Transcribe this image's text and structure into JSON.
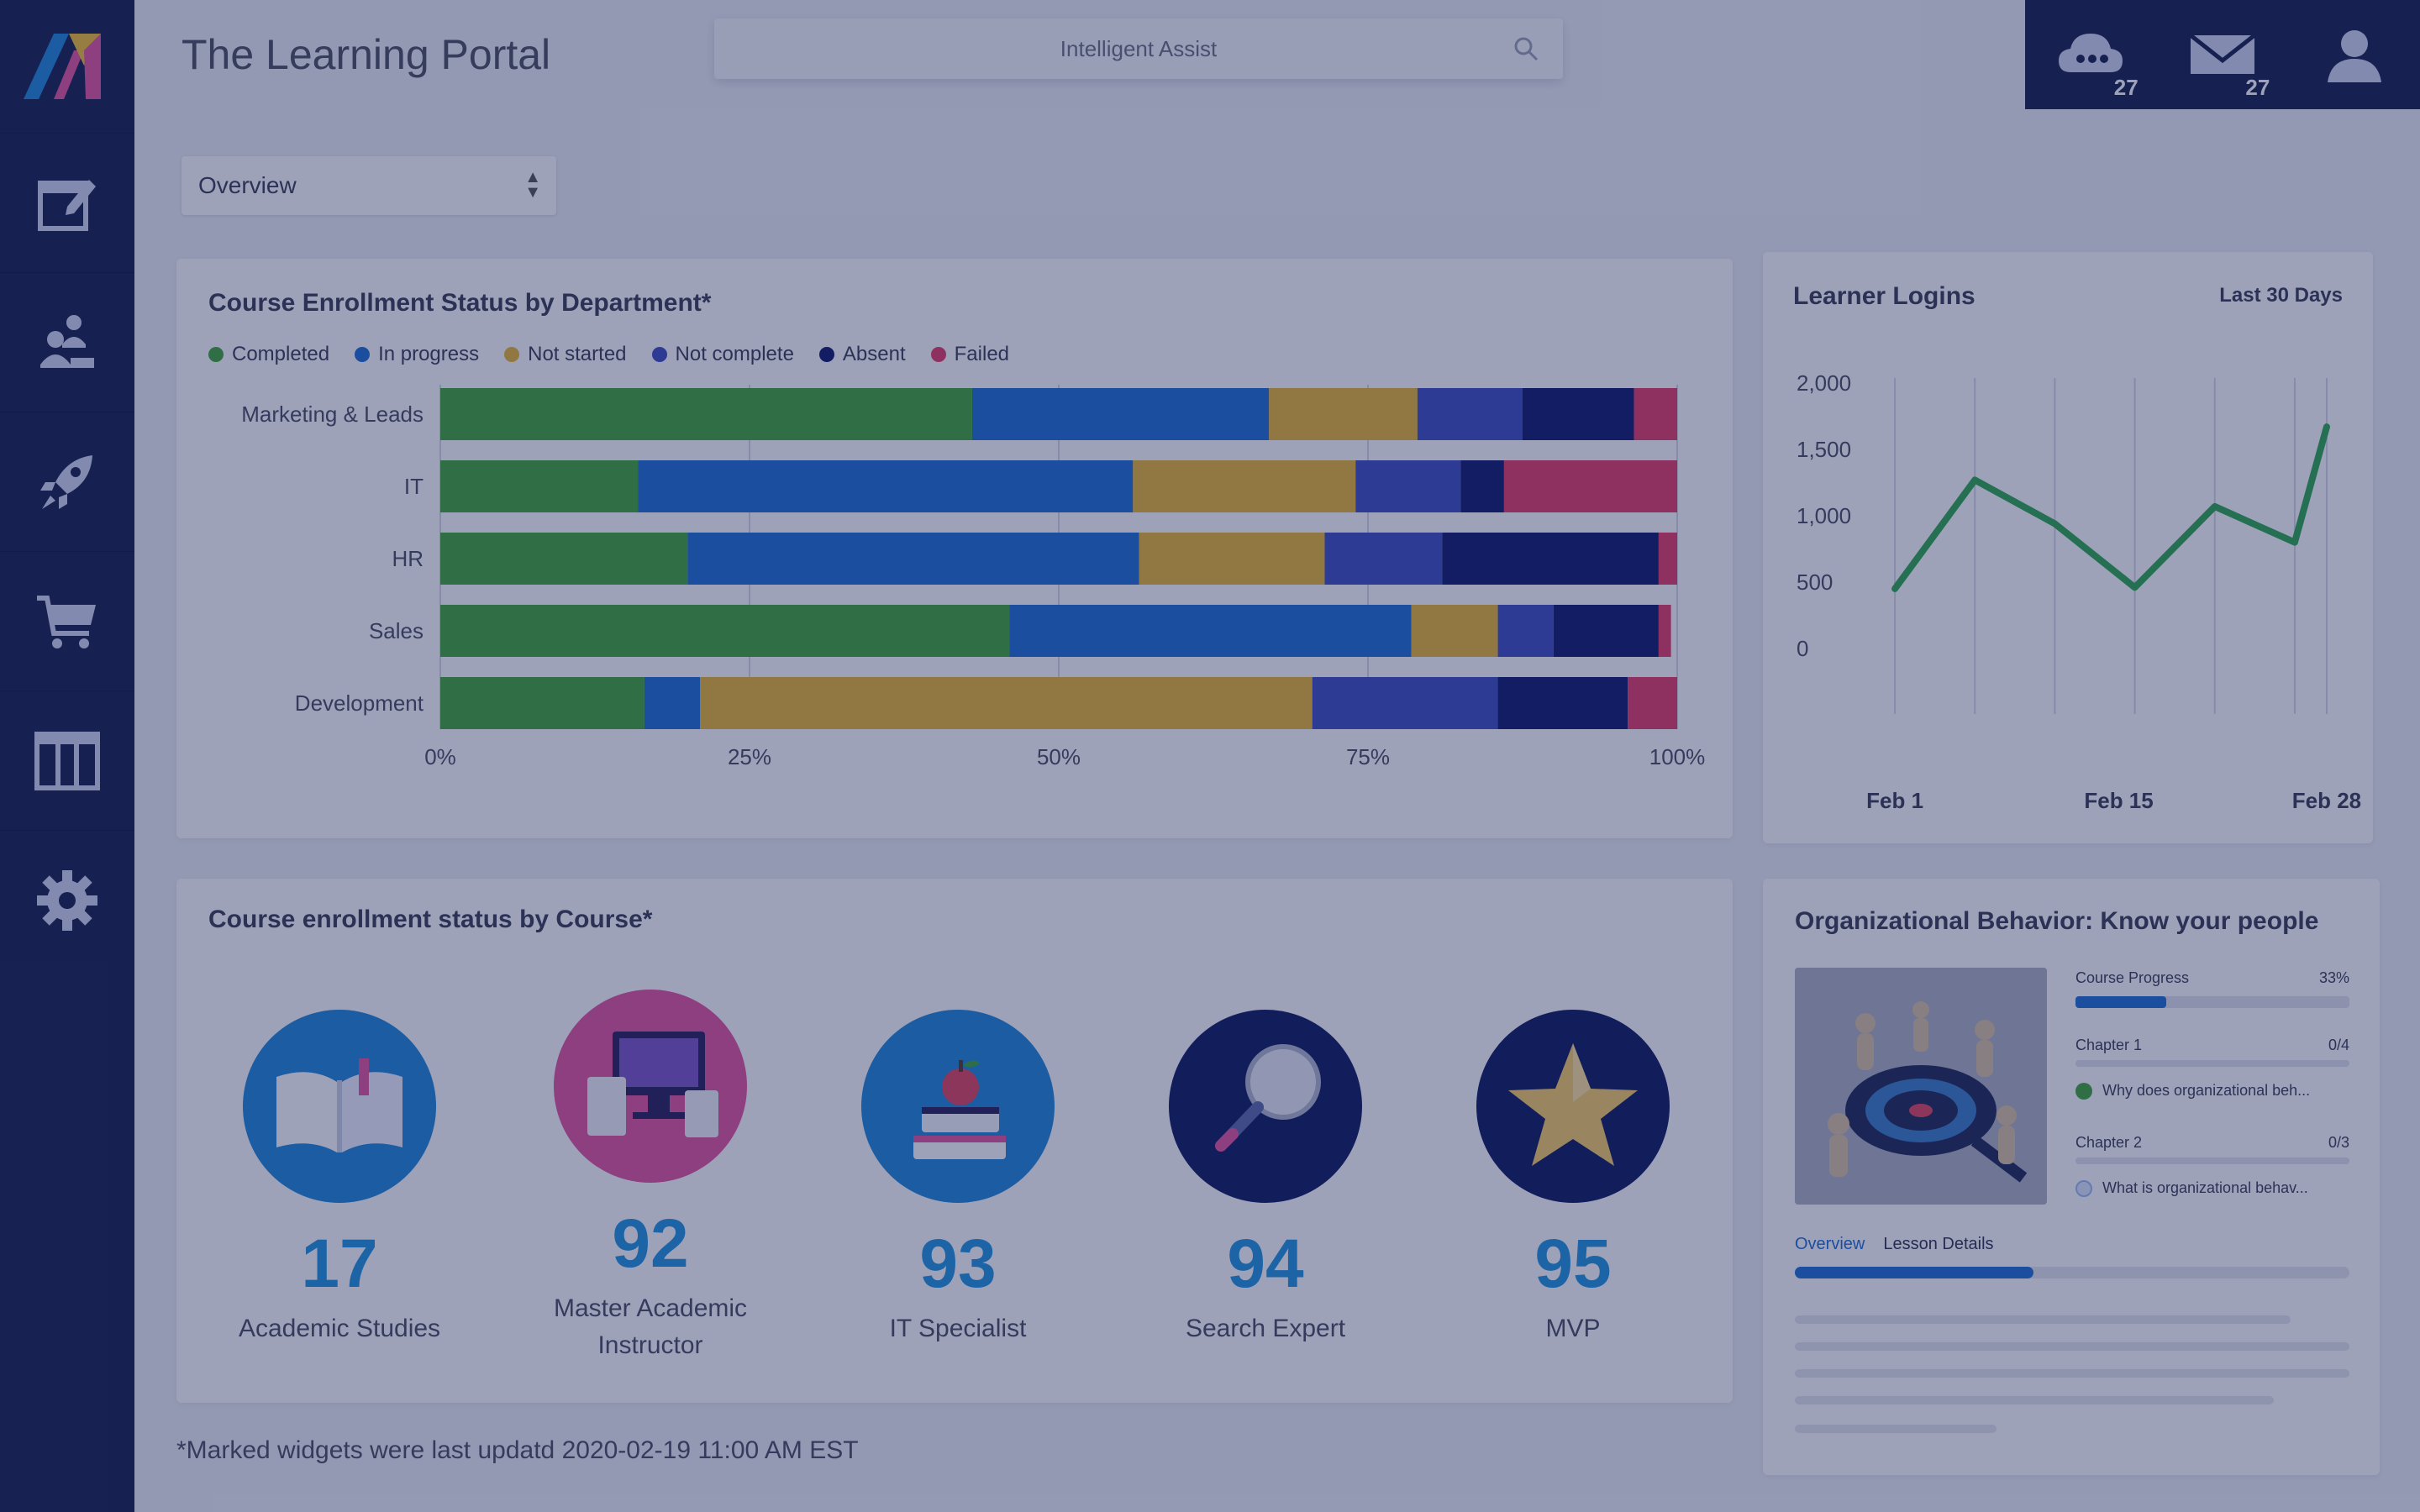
{
  "app": {
    "title": "The Learning Portal"
  },
  "search": {
    "label": "Intelligent Assist"
  },
  "topbar": {
    "items": [
      {
        "icon": "cloud-icon",
        "count": "27"
      },
      {
        "icon": "mail-icon",
        "count": "27"
      },
      {
        "icon": "user-icon"
      }
    ]
  },
  "sidebar": {
    "items": [
      {
        "icon": "edit-icon"
      },
      {
        "icon": "people-icon"
      },
      {
        "icon": "rocket-icon"
      },
      {
        "icon": "cart-icon"
      },
      {
        "icon": "columns-icon"
      },
      {
        "icon": "gear-icon"
      }
    ]
  },
  "view_select": {
    "value": "Overview"
  },
  "enrollment": {
    "title": "Course Enrollment Status by Department*",
    "legend": [
      {
        "label": "Completed",
        "color": "#43a838"
      },
      {
        "label": "In progress",
        "color": "#1f6ed4"
      },
      {
        "label": "Not started",
        "color": "#e8b732"
      },
      {
        "label": "Not complete",
        "color": "#3f4fbf"
      },
      {
        "label": "Absent",
        "color": "#0f1a6b"
      },
      {
        "label": "Failed",
        "color": "#e43d68"
      }
    ]
  },
  "logins": {
    "title": "Learner Logins",
    "range": "Last 30 Days"
  },
  "courses": {
    "title": "Course enrollment status by Course*",
    "items": [
      {
        "name": "Academic Studies",
        "count": "17",
        "color": "#1f87d8",
        "icon": "book-icon"
      },
      {
        "name": "Master Academic Instructor",
        "count": "92",
        "color": "#e3559c",
        "icon": "devices-icon"
      },
      {
        "name": "IT Specialist",
        "count": "93",
        "color": "#1f87d8",
        "icon": "books-apple-icon"
      },
      {
        "name": "Search Expert",
        "count": "94",
        "color": "#0f1a5e",
        "icon": "magnifier-icon"
      },
      {
        "name": "MVP",
        "count": "95",
        "color": "#0f1a5e",
        "icon": "star-icon"
      }
    ]
  },
  "org": {
    "title": "Organizational Behavior: Know your people",
    "progress_label": "Course Progress",
    "progress_value": "33%",
    "progress_fraction": 0.33,
    "chapter1": {
      "label": "Chapter 1",
      "value": "0/4"
    },
    "lesson1": "Why does organizational beh...",
    "chapter2": {
      "label": "Chapter 2",
      "value": "0/3"
    },
    "lesson2": "What is organizational behav...",
    "tabs": [
      "Overview",
      "Lesson Details"
    ],
    "tab_fraction": 0.43
  },
  "footnote": "*Marked widgets were last updatd 2020-02-19 11:00 AM EST",
  "chart_data": [
    {
      "type": "bar",
      "orientation": "horizontal",
      "stacked": true,
      "title": "Course Enrollment Status by Department*",
      "categories": [
        "Marketing & Leads",
        "IT",
        "HR",
        "Sales",
        "Development"
      ],
      "series": [
        {
          "name": "Completed",
          "color": "#43a838",
          "values": [
            43,
            16,
            20,
            46,
            16.5
          ]
        },
        {
          "name": "In progress",
          "color": "#1f6ed4",
          "values": [
            24,
            40,
            36.5,
            32.5,
            4.5
          ]
        },
        {
          "name": "Not started",
          "color": "#e8b732",
          "values": [
            12,
            18,
            15,
            7,
            49.5
          ]
        },
        {
          "name": "Not complete",
          "color": "#3f4fbf",
          "values": [
            8.5,
            8.5,
            9.5,
            4.5,
            15
          ]
        },
        {
          "name": "Absent",
          "color": "#0f1a6b",
          "values": [
            9,
            3.5,
            17.5,
            8.5,
            10.5
          ]
        },
        {
          "name": "Failed",
          "color": "#e43d68",
          "values": [
            3.5,
            14,
            1.5,
            1,
            4
          ]
        }
      ],
      "xticks": [
        "0%",
        "25%",
        "50%",
        "75%",
        "100%"
      ],
      "xlim": [
        0,
        100
      ],
      "grid": true,
      "legend": "top-left"
    },
    {
      "type": "line",
      "title": "Learner Logins",
      "subtitle": "Last 30 Days",
      "x": [
        1,
        6,
        11,
        16,
        21,
        26,
        28
      ],
      "xticks": [
        {
          "value": 1,
          "label": "Feb 1"
        },
        {
          "value": 15,
          "label": "Feb 15"
        },
        {
          "value": 28,
          "label": "Feb 28"
        }
      ],
      "xlim": [
        -2,
        29
      ],
      "series": [
        {
          "color": "#2fa84f",
          "values": [
            450,
            1270,
            940,
            460,
            1070,
            800,
            1670
          ]
        }
      ],
      "yticks": [
        "0",
        "500",
        "1,000",
        "1,500",
        "2,000"
      ],
      "ytick_values": [
        0,
        500,
        1000,
        1500,
        2000
      ],
      "ylim": [
        0,
        2000
      ],
      "grid": true
    }
  ]
}
